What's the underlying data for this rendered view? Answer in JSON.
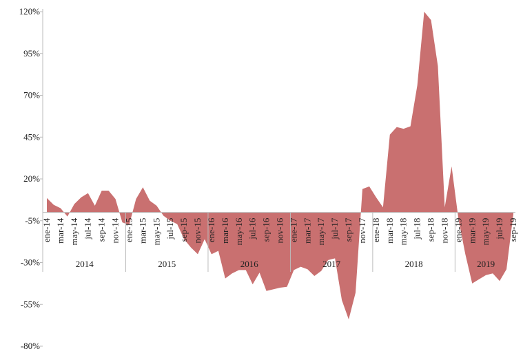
{
  "chart_data": {
    "type": "area",
    "color": "#c97070",
    "categories": [
      "ene-14",
      null,
      "mar-14",
      null,
      "may-14",
      null,
      "jul-14",
      null,
      "sep-14",
      null,
      "nov-14",
      null,
      "ene-15",
      null,
      "mar-15",
      null,
      "may-15",
      null,
      "jul-15",
      null,
      "sep-15",
      null,
      "nov-15",
      null,
      "ene-16",
      null,
      "mar-16",
      null,
      "may-16",
      null,
      "jul-16",
      null,
      "sep-16",
      null,
      "nov-16",
      null,
      "ene-17",
      null,
      "mar-17",
      null,
      "may-17",
      null,
      "jul-17",
      null,
      "sep-17",
      null,
      "nov-17",
      null,
      "ene-18",
      null,
      "mar-18",
      null,
      "may-18",
      null,
      "jul-18",
      null,
      "sep-18",
      null,
      "nov-18",
      null,
      "ene-19",
      null,
      "mar-19",
      null,
      "may-19",
      null,
      "jul-19",
      null,
      "sep-19"
    ],
    "years": [
      "2014",
      "2015",
      "2016",
      "2017",
      "2018",
      "2019"
    ],
    "values": [
      8.6,
      4.5,
      2.5,
      -2.5,
      5,
      9,
      11.5,
      4,
      13,
      13,
      8,
      -6,
      -7.5,
      8,
      15,
      7,
      4,
      -2,
      -5,
      -7,
      -16,
      -21,
      -25,
      -16,
      -25,
      -23,
      -39.5,
      -36.5,
      -34.5,
      -34.5,
      -43,
      -36,
      -47,
      -46,
      -45,
      -44.5,
      -34.5,
      -32.5,
      -34,
      -38,
      -35,
      -28.5,
      -27.5,
      -52.5,
      -64,
      -48,
      14,
      15.5,
      9,
      3,
      46.5,
      51,
      50,
      51.5,
      76,
      120,
      115,
      87.5,
      3,
      27.5,
      -4,
      -25,
      -42.5,
      -40,
      -37.5,
      -36.5,
      -41,
      -34,
      -1
    ],
    "ylim": [
      -80,
      120
    ],
    "yticks": [
      {
        "value": -80,
        "label": "-80%"
      },
      {
        "value": -55,
        "label": "-55%"
      },
      {
        "value": -30,
        "label": "-30%"
      },
      {
        "value": -5,
        "label": "-5%"
      },
      {
        "value": 20,
        "label": "20%"
      },
      {
        "value": 45,
        "label": "45%"
      },
      {
        "value": 70,
        "label": "70%"
      },
      {
        "value": 95,
        "label": "95%"
      },
      {
        "value": 120,
        "label": "120%"
      }
    ]
  }
}
